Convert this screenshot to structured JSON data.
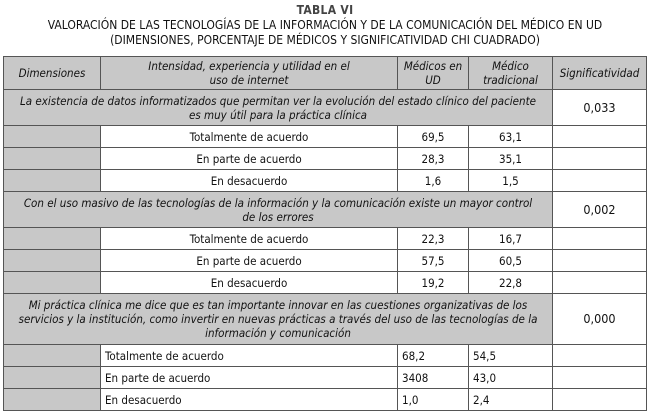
{
  "title": "TABLA VI",
  "subtitle_line1": "VALORACIÓN DE LAS TECNOLOGÍAS DE LA INFORMACIÓN Y DE LA COMUNICACIÓN DEL MÉDICO EN UD",
  "subtitle_line2": "(DIMENSIONES, PORCENTAJE DE MÉDICOS Y SIGNIFICATIVIDAD CHI CUADRADO)",
  "headers": [
    "Dimensiones",
    "Intensidad, experiencia y utilidad en el uso de internet",
    "Médicos en UD",
    "Médico tradicional",
    "Significatividad"
  ],
  "groups": [
    {
      "question": "La existencia de datos informatizados que permitan ver la evolución del estado clínico del paciente es muy útil para la práctica clínica",
      "significance": "0,033",
      "rows": [
        {
          "label": "Totalmente de acuerdo",
          "ud": "69,5",
          "trad": "63,1"
        },
        {
          "label": "En parte de acuerdo",
          "ud": "28,3",
          "trad": "35,1"
        },
        {
          "label": "En desacuerdo",
          "ud": "1,6",
          "trad": "1,5"
        }
      ]
    },
    {
      "question": "Con el uso masivo de las tecnologías de la información y la comunicación existe un mayor control de los errores",
      "significance": "0,002",
      "rows": [
        {
          "label": "Totalmente de acuerdo",
          "ud": "22,3",
          "trad": "16,7"
        },
        {
          "label": "En parte de acuerdo",
          "ud": "57,5",
          "trad": "60,5"
        },
        {
          "label": "En desacuerdo",
          "ud": "19,2",
          "trad": "22,8"
        }
      ]
    },
    {
      "question": "Mi práctica clínica me dice que es tan importante innovar en las cuestiones organizativas de los servicios y la institución, como invertir en nuevas prácticas a través del uso de las tecnologías de la información y comunicación",
      "significance": "0,000",
      "rows": [
        {
          "label": "Totalmente de acuerdo",
          "ud": "68,2",
          "trad": "54,5"
        },
        {
          "label": "En parte de acuerdo",
          "ud": "3408",
          "trad": "43,0"
        },
        {
          "label": "En desacuerdo",
          "ud": "1,0",
          "trad": "2,4"
        }
      ]
    }
  ]
}
